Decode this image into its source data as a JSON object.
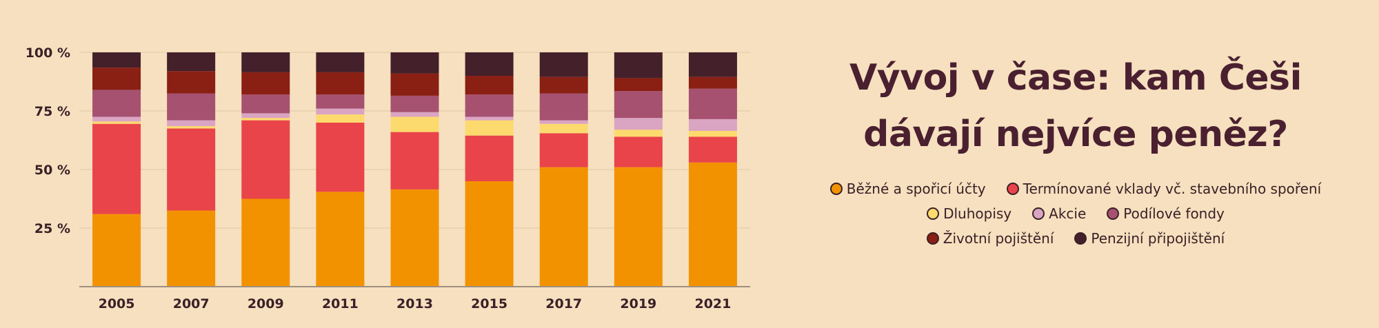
{
  "chart_data": {
    "type": "bar",
    "stacked": true,
    "title": "Vývoj v čase: kam Češi dávají nejvíce peněz?",
    "title_lines": [
      "Vývoj v čase: kam Češi",
      "dávají nejvíce peněz?"
    ],
    "categories": [
      "2005",
      "2007",
      "2009",
      "2011",
      "2013",
      "2015",
      "2017",
      "2019",
      "2021"
    ],
    "y_ticks": [
      "25 %",
      "50 %",
      "75 %",
      "100 %"
    ],
    "y_tick_values": [
      25,
      50,
      75,
      100
    ],
    "ylim": [
      0,
      100
    ],
    "grid": true,
    "legend_position": "right",
    "series": [
      {
        "name": "Běžné a spořicí účty",
        "color": "#f39200",
        "values": [
          31,
          32.5,
          37.5,
          40.5,
          41.5,
          45,
          51,
          51,
          53
        ]
      },
      {
        "name": "Termínované vklady vč. stavebního spoření",
        "color": "#e9444a",
        "values": [
          38.5,
          35,
          33.5,
          29.5,
          24.5,
          19.5,
          14.5,
          13,
          11
        ]
      },
      {
        "name": "Dluhopisy",
        "color": "#fdda6e",
        "values": [
          1,
          1,
          1,
          3.5,
          6.5,
          6.5,
          4,
          3,
          2.5
        ]
      },
      {
        "name": "Akcie",
        "color": "#daa5c3",
        "values": [
          2,
          2.5,
          2,
          2.5,
          2,
          1.5,
          1.5,
          5,
          5
        ]
      },
      {
        "name": "Podílové fondy",
        "color": "#a65170",
        "values": [
          11.5,
          11.5,
          8,
          6,
          7,
          9.5,
          11.5,
          11.5,
          13
        ]
      },
      {
        "name": "Životní pojištění",
        "color": "#8a1f14",
        "values": [
          9.5,
          9.5,
          9.5,
          9.5,
          9.5,
          8,
          7,
          5.5,
          5
        ]
      },
      {
        "name": "Penzijní připojištění",
        "color": "#44202a",
        "values": [
          6.5,
          8,
          8.5,
          8.5,
          9,
          10,
          10.5,
          11,
          10.5
        ]
      }
    ]
  }
}
